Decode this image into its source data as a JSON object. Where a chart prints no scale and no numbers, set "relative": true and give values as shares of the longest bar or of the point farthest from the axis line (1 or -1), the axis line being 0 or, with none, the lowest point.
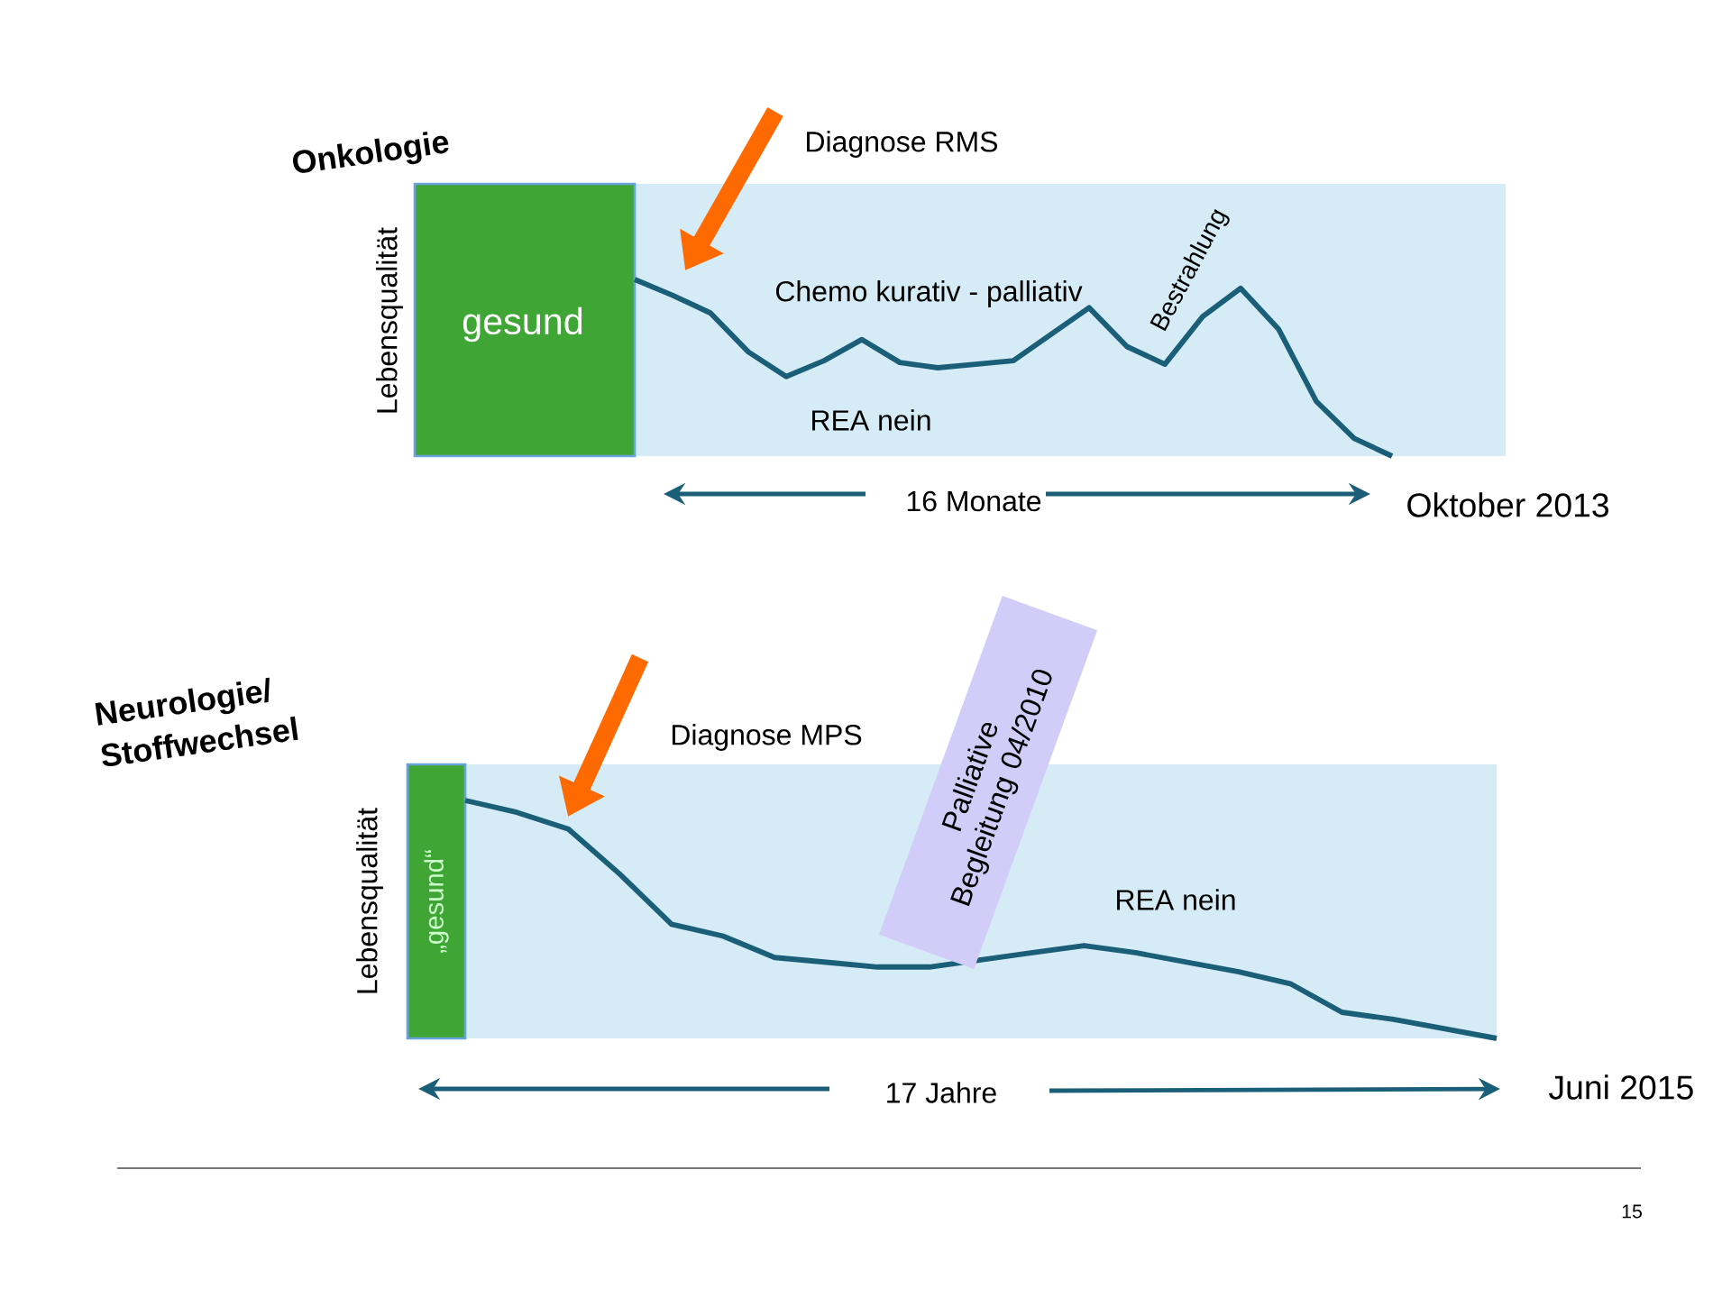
{
  "chart_data": [
    {
      "type": "line",
      "title": "Onkologie",
      "ylabel": "Lebensqualität",
      "relative": true,
      "marker": "none",
      "color": "#1b5e78",
      "categories": [
        null,
        null,
        null,
        null,
        null,
        null,
        null,
        null,
        null,
        null,
        null,
        null,
        null,
        null,
        null,
        null,
        null,
        null,
        null,
        null,
        null,
        null,
        null,
        null
      ],
      "values": [
        1.0,
        0.91,
        0.81,
        0.59,
        0.45,
        0.54,
        0.66,
        0.53,
        0.5,
        0.52,
        0.54,
        0.69,
        0.84,
        0.62,
        0.52,
        0.79,
        0.95,
        0.72,
        0.31,
        0.1,
        0.0,
        null,
        null,
        null
      ],
      "annotations": [
        "gesund",
        "Diagnose RMS",
        "Chemo kurativ - palliativ",
        "Bestrahlung",
        "REA nein",
        "16 Monate",
        "Oktober 2013"
      ]
    },
    {
      "type": "line",
      "title": "Neurologie/ Stoffwechsel",
      "ylabel": "Lebensqualität",
      "relative": true,
      "marker": "none",
      "color": "#1b5e78",
      "categories": [
        null,
        null,
        null,
        null,
        null,
        null,
        null,
        null,
        null,
        null,
        null,
        null,
        null,
        null,
        null,
        null,
        null,
        null,
        null,
        null,
        null
      ],
      "values": [
        1.0,
        0.95,
        0.88,
        0.69,
        0.48,
        0.43,
        0.34,
        0.32,
        0.3,
        0.3,
        0.33,
        0.36,
        0.39,
        0.36,
        0.32,
        0.28,
        0.23,
        0.11,
        0.08,
        0.04,
        0.0
      ],
      "annotations": [
        "„gesund“",
        "Diagnose MPS",
        "Palliative Begleitung 04/2010",
        "REA nein",
        "17 Jahre",
        "Juni 2015",
        "15"
      ]
    }
  ]
}
